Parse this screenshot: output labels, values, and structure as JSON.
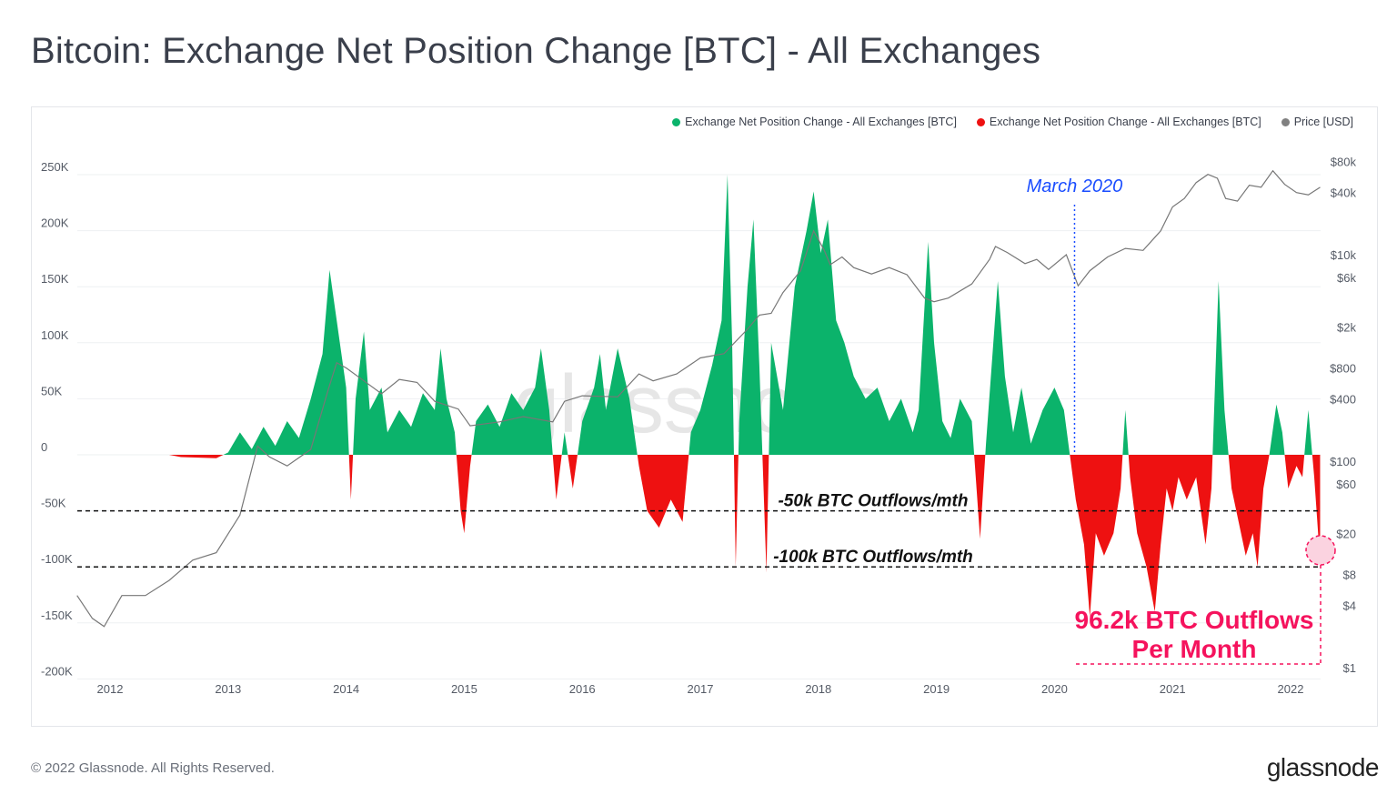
{
  "title": "Bitcoin: Exchange Net Position Change [BTC] - All Exchanges",
  "footer": {
    "copyright": "© 2022 Glassnode. All Rights Reserved.",
    "logo": "glassnode"
  },
  "watermark": "glassnode",
  "chart_data": {
    "type": "area",
    "title": "Bitcoin: Exchange Net Position Change [BTC] - All Exchanges",
    "legend_placement": "top-right",
    "legend": [
      {
        "label": "Exchange Net Position Change - All Exchanges [BTC]",
        "color": "#0bb36b"
      },
      {
        "label": "Exchange Net Position Change - All Exchanges [BTC]",
        "color": "#ee1111"
      },
      {
        "label": "Price [USD]",
        "color": "#808080"
      }
    ],
    "x_ticks": [
      "2012",
      "2013",
      "2014",
      "2015",
      "2016",
      "2017",
      "2018",
      "2019",
      "2020",
      "2021",
      "2022"
    ],
    "xlim": [
      2011.72,
      2022.25
    ],
    "y_left": {
      "ticks": [
        250,
        200,
        150,
        100,
        50,
        0,
        -50,
        -100,
        -150,
        -200
      ],
      "tick_labels": [
        "250K",
        "200K",
        "150K",
        "100K",
        "50K",
        "0",
        "-50K",
        "-100K",
        "-150K",
        "-200K"
      ],
      "ylim": [
        -200,
        250
      ],
      "unit": "K BTC"
    },
    "y_right": {
      "scale": "log",
      "ticks": [
        80000,
        40000,
        10000,
        6000,
        2000,
        800,
        400,
        100,
        60,
        20,
        8,
        4,
        1
      ],
      "tick_labels": [
        "$80k",
        "$40k",
        "$10k",
        "$6k",
        "$2k",
        "$800",
        "$400",
        "$100",
        "$60",
        "$20",
        "$8",
        "$4",
        "$1"
      ]
    },
    "grid": true,
    "series": [
      {
        "name": "Exchange Net Position Change - All Exchanges [BTC]",
        "unit": "K BTC",
        "points": [
          [
            2011.72,
            0
          ],
          [
            2012.5,
            0
          ],
          [
            2012.6,
            -2
          ],
          [
            2012.9,
            -3
          ],
          [
            2013.0,
            2
          ],
          [
            2013.1,
            20
          ],
          [
            2013.2,
            5
          ],
          [
            2013.3,
            25
          ],
          [
            2013.4,
            8
          ],
          [
            2013.5,
            30
          ],
          [
            2013.6,
            15
          ],
          [
            2013.7,
            50
          ],
          [
            2013.8,
            90
          ],
          [
            2013.86,
            165
          ],
          [
            2013.92,
            120
          ],
          [
            2014.0,
            60
          ],
          [
            2014.04,
            -40
          ],
          [
            2014.08,
            50
          ],
          [
            2014.15,
            110
          ],
          [
            2014.2,
            40
          ],
          [
            2014.3,
            60
          ],
          [
            2014.35,
            20
          ],
          [
            2014.45,
            40
          ],
          [
            2014.55,
            25
          ],
          [
            2014.65,
            55
          ],
          [
            2014.75,
            40
          ],
          [
            2014.8,
            95
          ],
          [
            2014.85,
            50
          ],
          [
            2014.92,
            20
          ],
          [
            2014.97,
            -50
          ],
          [
            2015.0,
            -70
          ],
          [
            2015.05,
            -10
          ],
          [
            2015.1,
            30
          ],
          [
            2015.2,
            45
          ],
          [
            2015.3,
            25
          ],
          [
            2015.4,
            55
          ],
          [
            2015.5,
            40
          ],
          [
            2015.6,
            60
          ],
          [
            2015.65,
            95
          ],
          [
            2015.72,
            40
          ],
          [
            2015.78,
            -40
          ],
          [
            2015.85,
            20
          ],
          [
            2015.92,
            -30
          ],
          [
            2016.0,
            30
          ],
          [
            2016.1,
            60
          ],
          [
            2016.15,
            90
          ],
          [
            2016.2,
            40
          ],
          [
            2016.3,
            95
          ],
          [
            2016.4,
            50
          ],
          [
            2016.48,
            -10
          ],
          [
            2016.55,
            -50
          ],
          [
            2016.65,
            -65
          ],
          [
            2016.75,
            -40
          ],
          [
            2016.85,
            -60
          ],
          [
            2016.92,
            20
          ],
          [
            2017.0,
            40
          ],
          [
            2017.1,
            80
          ],
          [
            2017.18,
            120
          ],
          [
            2017.23,
            250
          ],
          [
            2017.27,
            100
          ],
          [
            2017.3,
            -100
          ],
          [
            2017.33,
            30
          ],
          [
            2017.4,
            150
          ],
          [
            2017.45,
            210
          ],
          [
            2017.5,
            80
          ],
          [
            2017.56,
            -105
          ],
          [
            2017.6,
            100
          ],
          [
            2017.7,
            40
          ],
          [
            2017.8,
            150
          ],
          [
            2017.9,
            200
          ],
          [
            2017.96,
            235
          ],
          [
            2018.02,
            180
          ],
          [
            2018.08,
            210
          ],
          [
            2018.15,
            120
          ],
          [
            2018.22,
            100
          ],
          [
            2018.3,
            70
          ],
          [
            2018.4,
            50
          ],
          [
            2018.5,
            60
          ],
          [
            2018.6,
            30
          ],
          [
            2018.7,
            50
          ],
          [
            2018.8,
            20
          ],
          [
            2018.85,
            40
          ],
          [
            2018.93,
            190
          ],
          [
            2018.98,
            100
          ],
          [
            2019.05,
            30
          ],
          [
            2019.12,
            15
          ],
          [
            2019.2,
            50
          ],
          [
            2019.3,
            30
          ],
          [
            2019.37,
            -75
          ],
          [
            2019.42,
            10
          ],
          [
            2019.52,
            155
          ],
          [
            2019.58,
            70
          ],
          [
            2019.65,
            20
          ],
          [
            2019.72,
            60
          ],
          [
            2019.8,
            10
          ],
          [
            2019.9,
            40
          ],
          [
            2020.0,
            60
          ],
          [
            2020.08,
            40
          ],
          [
            2020.13,
            0
          ],
          [
            2020.18,
            -40
          ],
          [
            2020.25,
            -80
          ],
          [
            2020.3,
            -145
          ],
          [
            2020.35,
            -70
          ],
          [
            2020.42,
            -90
          ],
          [
            2020.5,
            -70
          ],
          [
            2020.56,
            -30
          ],
          [
            2020.6,
            40
          ],
          [
            2020.64,
            -20
          ],
          [
            2020.7,
            -70
          ],
          [
            2020.78,
            -100
          ],
          [
            2020.85,
            -140
          ],
          [
            2020.9,
            -80
          ],
          [
            2020.95,
            -30
          ],
          [
            2021.0,
            -50
          ],
          [
            2021.05,
            -20
          ],
          [
            2021.12,
            -40
          ],
          [
            2021.2,
            -20
          ],
          [
            2021.28,
            -80
          ],
          [
            2021.33,
            -30
          ],
          [
            2021.39,
            155
          ],
          [
            2021.44,
            40
          ],
          [
            2021.5,
            -30
          ],
          [
            2021.56,
            -60
          ],
          [
            2021.62,
            -90
          ],
          [
            2021.68,
            -70
          ],
          [
            2021.72,
            -100
          ],
          [
            2021.77,
            -30
          ],
          [
            2021.82,
            0
          ],
          [
            2021.88,
            45
          ],
          [
            2021.93,
            20
          ],
          [
            2021.98,
            -30
          ],
          [
            2022.05,
            -10
          ],
          [
            2022.1,
            -20
          ],
          [
            2022.15,
            40
          ],
          [
            2022.2,
            -20
          ],
          [
            2022.25,
            -96.2
          ]
        ]
      },
      {
        "name": "Price [USD]",
        "axis": "right",
        "points": [
          [
            2011.72,
            5
          ],
          [
            2011.85,
            3
          ],
          [
            2011.95,
            2.5
          ],
          [
            2012.1,
            5
          ],
          [
            2012.3,
            5
          ],
          [
            2012.5,
            7
          ],
          [
            2012.7,
            11
          ],
          [
            2012.9,
            13
          ],
          [
            2013.1,
            30
          ],
          [
            2013.25,
            140
          ],
          [
            2013.35,
            110
          ],
          [
            2013.5,
            90
          ],
          [
            2013.7,
            130
          ],
          [
            2013.85,
            500
          ],
          [
            2013.92,
            900
          ],
          [
            2014.0,
            800
          ],
          [
            2014.15,
            600
          ],
          [
            2014.3,
            450
          ],
          [
            2014.45,
            620
          ],
          [
            2014.6,
            580
          ],
          [
            2014.75,
            380
          ],
          [
            2014.95,
            320
          ],
          [
            2015.05,
            220
          ],
          [
            2015.3,
            240
          ],
          [
            2015.5,
            270
          ],
          [
            2015.75,
            240
          ],
          [
            2015.85,
            380
          ],
          [
            2016.0,
            430
          ],
          [
            2016.3,
            420
          ],
          [
            2016.48,
            700
          ],
          [
            2016.6,
            600
          ],
          [
            2016.8,
            700
          ],
          [
            2017.0,
            1000
          ],
          [
            2017.2,
            1100
          ],
          [
            2017.4,
            1900
          ],
          [
            2017.5,
            2600
          ],
          [
            2017.6,
            2700
          ],
          [
            2017.7,
            4300
          ],
          [
            2017.85,
            7000
          ],
          [
            2017.96,
            17000
          ],
          [
            2018.05,
            11000
          ],
          [
            2018.1,
            8000
          ],
          [
            2018.2,
            9500
          ],
          [
            2018.3,
            7500
          ],
          [
            2018.45,
            6500
          ],
          [
            2018.6,
            7500
          ],
          [
            2018.75,
            6400
          ],
          [
            2018.9,
            3800
          ],
          [
            2018.98,
            3500
          ],
          [
            2019.1,
            3800
          ],
          [
            2019.3,
            5200
          ],
          [
            2019.45,
            9000
          ],
          [
            2019.5,
            12000
          ],
          [
            2019.6,
            10500
          ],
          [
            2019.75,
            8200
          ],
          [
            2019.85,
            9000
          ],
          [
            2019.95,
            7200
          ],
          [
            2020.1,
            10000
          ],
          [
            2020.2,
            5000
          ],
          [
            2020.3,
            7000
          ],
          [
            2020.45,
            9500
          ],
          [
            2020.6,
            11500
          ],
          [
            2020.75,
            11000
          ],
          [
            2020.9,
            17000
          ],
          [
            2021.0,
            29000
          ],
          [
            2021.1,
            35000
          ],
          [
            2021.2,
            50000
          ],
          [
            2021.3,
            60000
          ],
          [
            2021.38,
            55000
          ],
          [
            2021.45,
            35000
          ],
          [
            2021.55,
            33000
          ],
          [
            2021.65,
            47000
          ],
          [
            2021.75,
            45000
          ],
          [
            2021.85,
            65000
          ],
          [
            2021.95,
            48000
          ],
          [
            2022.05,
            40000
          ],
          [
            2022.15,
            38000
          ],
          [
            2022.25,
            45000
          ]
        ]
      }
    ],
    "annotations": {
      "march_2020": {
        "text": "March 2020",
        "x": 2020.17,
        "color": "#1a4dff"
      },
      "line_50k": {
        "text": "-50k BTC Outflows/mth",
        "y": -50
      },
      "line_100k": {
        "text": "-100k BTC Outflows/mth",
        "y": -100
      },
      "callout": {
        "line1": "96.2k BTC Outflows",
        "line2": "Per Month",
        "value": -96.2,
        "color": "#f5135d"
      }
    }
  }
}
